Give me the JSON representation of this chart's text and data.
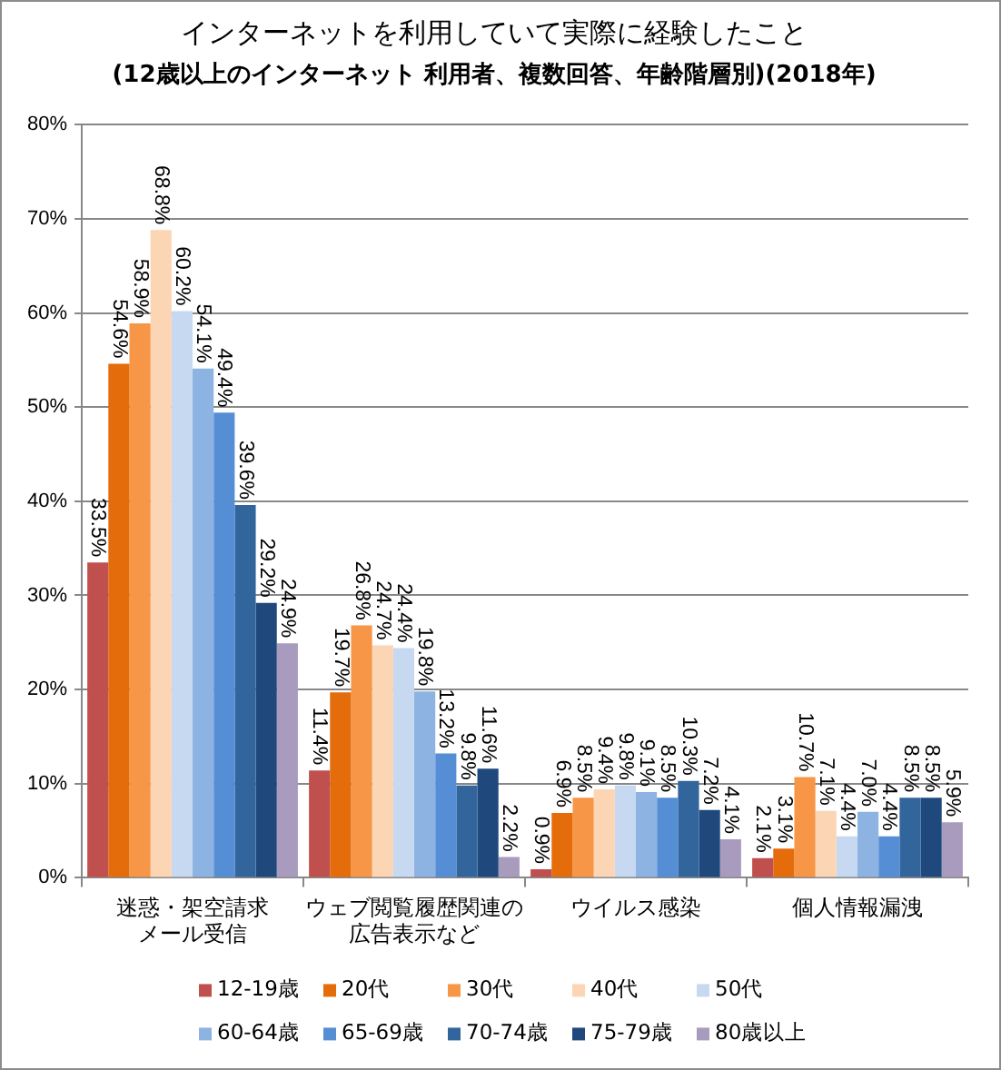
{
  "chart_data": {
    "type": "bar",
    "title": "インターネットを利用していて実際に経験したこと",
    "subtitle": "(12歳以上のインターネット 利用者、複数回答、年齢階層別)(2018年)",
    "categories": [
      "迷惑・架空請求メール受信",
      "ウェブ閲覧履歴関連の広告表示など",
      "ウイルス感染",
      "個人情報漏洩"
    ],
    "series": [
      {
        "name": "12-19歳",
        "color": "#c0504d",
        "values": [
          33.5,
          11.4,
          0.9,
          2.1
        ],
        "value_labels": [
          "33.5%",
          "11.4%",
          "0.9%",
          "2.1%"
        ]
      },
      {
        "name": "20代",
        "color": "#e46c0a",
        "values": [
          54.6,
          19.7,
          6.9,
          3.1
        ],
        "value_labels": [
          "54.6%",
          "19.7%",
          "6.9%",
          "3.1%"
        ]
      },
      {
        "name": "30代",
        "color": "#f79646",
        "values": [
          58.9,
          26.8,
          8.5,
          10.7
        ],
        "value_labels": [
          "58.9%",
          "26.8%",
          "8.5%",
          "10.7%"
        ]
      },
      {
        "name": "40代",
        "color": "#fcd5b5",
        "values": [
          68.8,
          24.7,
          9.4,
          7.1
        ],
        "value_labels": [
          "68.8%",
          "24.7%",
          "9.4%",
          "7.1%"
        ]
      },
      {
        "name": "50代",
        "color": "#c6d9f1",
        "values": [
          60.2,
          24.4,
          9.8,
          4.4
        ],
        "value_labels": [
          "60.2%",
          "24.4%",
          "9.8%",
          "4.4%"
        ]
      },
      {
        "name": "60-64歳",
        "color": "#8db3e2",
        "values": [
          54.1,
          19.8,
          9.1,
          7.0
        ],
        "value_labels": [
          "54.1%",
          "19.8%",
          "9.1%",
          "7.0%"
        ]
      },
      {
        "name": "65-69歳",
        "color": "#558ed5",
        "values": [
          49.4,
          13.2,
          8.5,
          4.4
        ],
        "value_labels": [
          "49.4%",
          "13.2%",
          "8.5%",
          "4.4%"
        ]
      },
      {
        "name": "70-74歳",
        "color": "#31659c",
        "values": [
          39.6,
          9.8,
          10.3,
          8.5
        ],
        "value_labels": [
          "39.6%",
          "9.8%",
          "10.3%",
          "8.5%"
        ]
      },
      {
        "name": "75-79歳",
        "color": "#1f497d",
        "values": [
          29.2,
          11.6,
          7.2,
          8.5
        ],
        "value_labels": [
          "29.2%",
          "11.6%",
          "7.2%",
          "8.5%"
        ]
      },
      {
        "name": "80歳以上",
        "color": "#a99bbd",
        "values": [
          24.9,
          2.2,
          4.1,
          5.9
        ],
        "value_labels": [
          "24.9%",
          "2.2%",
          "4.1%",
          "5.9%"
        ]
      }
    ],
    "ylim": [
      0,
      80
    ],
    "yticks": [
      {
        "value": 0,
        "label": "0%"
      },
      {
        "value": 10,
        "label": "10%"
      },
      {
        "value": 20,
        "label": "20%"
      },
      {
        "value": 30,
        "label": "30%"
      },
      {
        "value": 40,
        "label": "40%"
      },
      {
        "value": 50,
        "label": "50%"
      },
      {
        "value": 60,
        "label": "60%"
      },
      {
        "value": 70,
        "label": "70%"
      },
      {
        "value": 80,
        "label": "80%"
      }
    ],
    "grid": "y",
    "legend": "bottom"
  }
}
